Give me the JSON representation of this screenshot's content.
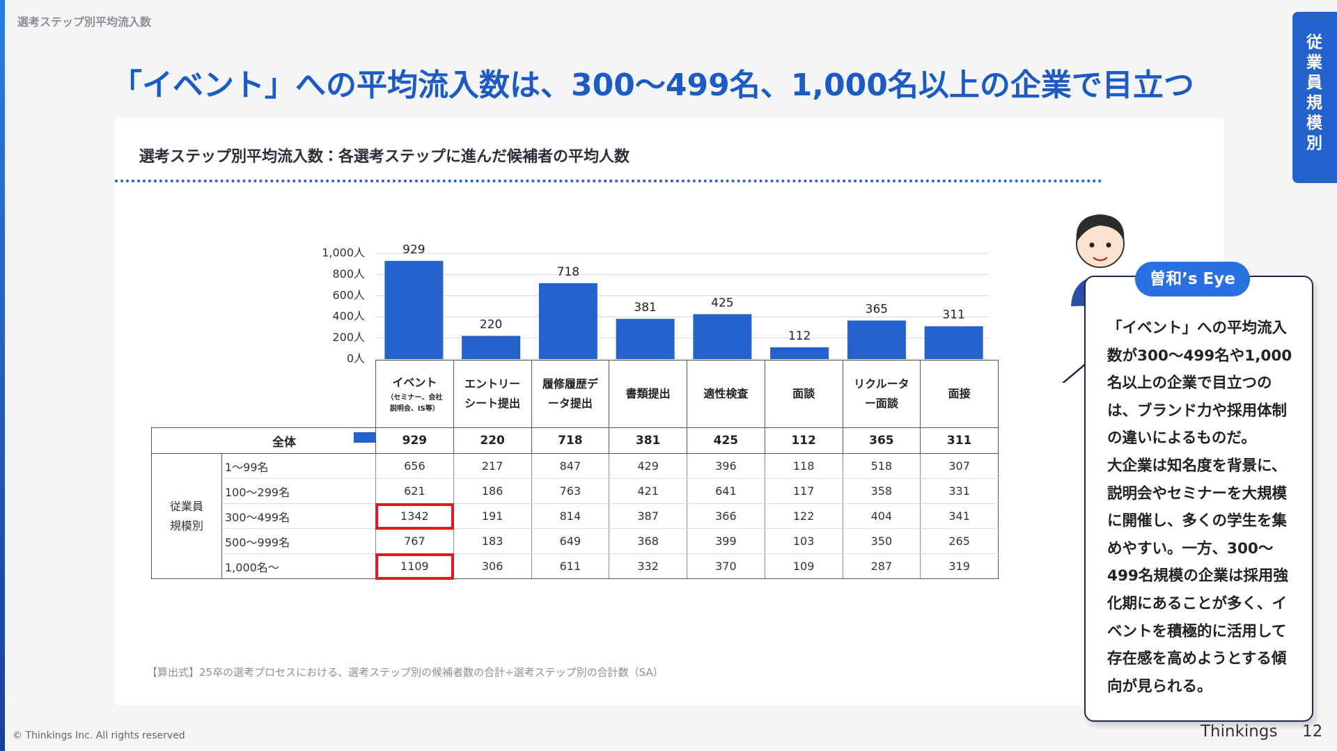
{
  "header": {
    "breadcrumb": "選考ステップ別平均流入数",
    "title": "「イベント」への平均流入数は、300〜499名、1,000名以上の企業で目立つ",
    "side_tab": "従業員規模別"
  },
  "chart_data": {
    "type": "bar",
    "title": "選考ステップ別平均流入数：各選考ステップに進んだ候補者の平均人数",
    "categories": [
      "イベント",
      "エントリーシート提出",
      "履修履歴データ提出",
      "書類提出",
      "適性検査",
      "面談",
      "リクルーター面談",
      "面接"
    ],
    "event_note": "（セミナー、会社説明会、IS等）",
    "series": [
      {
        "name": "全体",
        "color": "#2563cc",
        "values": [
          929,
          220,
          718,
          381,
          425,
          112,
          365,
          311
        ]
      }
    ],
    "ylim": [
      0,
      1000
    ],
    "yticks": [
      {
        "value": 0,
        "label": "0人"
      },
      {
        "value": 200,
        "label": "200人"
      },
      {
        "value": 400,
        "label": "400人"
      },
      {
        "value": 600,
        "label": "600人"
      },
      {
        "value": 800,
        "label": "800人"
      },
      {
        "value": 1000,
        "label": "1,000人"
      }
    ],
    "grid": true
  },
  "table": {
    "group_label": "従業員規模別",
    "rows": [
      {
        "name": "1〜99名",
        "values": [
          656,
          217,
          847,
          429,
          396,
          118,
          518,
          307
        ]
      },
      {
        "name": "100〜299名",
        "values": [
          621,
          186,
          763,
          421,
          641,
          117,
          358,
          331
        ]
      },
      {
        "name": "300〜499名",
        "values": [
          1342,
          191,
          814,
          387,
          366,
          122,
          404,
          341
        ]
      },
      {
        "name": "500〜999名",
        "values": [
          767,
          183,
          649,
          368,
          399,
          103,
          350,
          265
        ]
      },
      {
        "name": "1,000名〜",
        "values": [
          1109,
          306,
          611,
          332,
          370,
          109,
          287,
          319
        ]
      }
    ],
    "highlight": [
      [
        2,
        0
      ],
      [
        4,
        0
      ]
    ]
  },
  "note": "【算出式】25卒の選考プロセスにおける、選考ステップ別の候補者数の合計÷選考ステップ別の合計数（SA）",
  "commentary": {
    "badge": "曽和’s Eye",
    "body": [
      "「イベント」への平均流入数が300〜499名や1,000名以上の企業で目立つのは、ブランド力や採用体制の違いによるものだ。",
      "大企業は知名度を背景に、説明会やセミナーを大規模に開催し、多くの学生を集めやすい。一方、300〜499名規模の企業は採用強化期にあることが多く、イベントを積極的に活用して存在感を高めようとする傾向が見られる。"
    ]
  },
  "footer": {
    "copyright": "© Thinkings Inc. All rights reserved",
    "brand": "Thinkings",
    "page": "12"
  }
}
